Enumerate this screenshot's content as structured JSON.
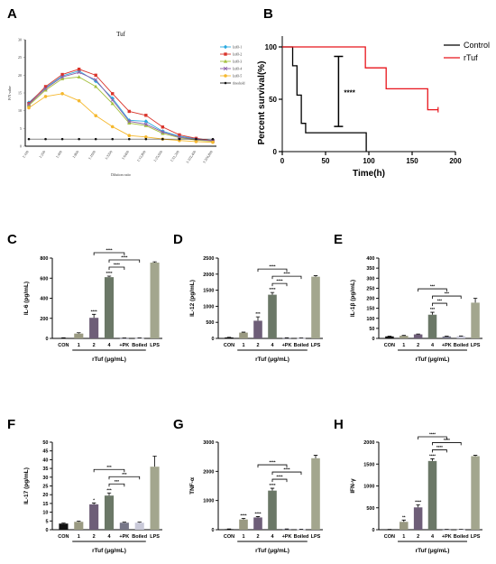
{
  "panel_labels": [
    "A",
    "B",
    "C",
    "D",
    "E",
    "F",
    "G",
    "H"
  ],
  "chart_data": [
    {
      "panel": "A",
      "type": "line",
      "title": "Tuf",
      "xlabel": "Dilution ratio",
      "ylabel": "P/N value",
      "categories": [
        "1:100",
        "1:200",
        "1:400",
        "1:800",
        "1:1600",
        "1:3200",
        "1:6400",
        "1:12,800",
        "1:25,600",
        "1:51,200",
        "1:102,400",
        "1:204,800"
      ],
      "ylim": [
        0,
        30
      ],
      "yticks": [
        0,
        5,
        10,
        15,
        20,
        25,
        30
      ],
      "legend_position": "right",
      "series": [
        {
          "name": "IzdO-1",
          "color": "#29a9e0",
          "marker": "diamond",
          "values": [
            12.3,
            16.5,
            19.8,
            21.2,
            18.3,
            13.5,
            7.3,
            7.0,
            4.2,
            2.8,
            2.1,
            1.6
          ]
        },
        {
          "name": "IzdO-2",
          "color": "#d9342b",
          "marker": "square",
          "values": [
            12.0,
            16.8,
            20.2,
            21.7,
            20.0,
            14.8,
            9.8,
            8.7,
            5.4,
            3.2,
            2.2,
            1.5
          ]
        },
        {
          "name": "IzdO-3",
          "color": "#a4c03d",
          "marker": "triangle",
          "values": [
            11.5,
            15.8,
            19.0,
            19.5,
            16.8,
            12.0,
            6.5,
            5.8,
            3.6,
            2.4,
            1.7,
            1.4
          ]
        },
        {
          "name": "IzdO-4",
          "color": "#8a5fa8",
          "marker": "x",
          "values": [
            11.8,
            16.2,
            19.5,
            20.8,
            18.7,
            13.0,
            7.0,
            6.2,
            4.0,
            2.6,
            1.9,
            1.5
          ]
        },
        {
          "name": "IzdO-5",
          "color": "#f5b82e",
          "marker": "circle",
          "values": [
            10.8,
            14.0,
            14.8,
            12.8,
            8.6,
            5.5,
            3.0,
            2.6,
            2.0,
            1.6,
            1.3,
            1.1
          ]
        },
        {
          "name": "threshold",
          "color": "#111111",
          "marker": "dot",
          "values": [
            2,
            2,
            2,
            2,
            2,
            2,
            2,
            2,
            2,
            2,
            2,
            2
          ]
        }
      ]
    },
    {
      "panel": "B",
      "type": "line",
      "xlabel": "Time(h)",
      "ylabel": "Percent survival(%)",
      "xlim": [
        0,
        200
      ],
      "ylim": [
        0,
        100
      ],
      "xticks": [
        0,
        50,
        100,
        150,
        200
      ],
      "yticks": [
        0,
        50,
        100
      ],
      "legend_position": "top-right",
      "significance": "****",
      "series": [
        {
          "name": "Control",
          "color": "#000000",
          "steps": [
            [
              0,
              100
            ],
            [
              12,
              100
            ],
            [
              12,
              82
            ],
            [
              17,
              82
            ],
            [
              17,
              54
            ],
            [
              22,
              54
            ],
            [
              22,
              27
            ],
            [
              27,
              27
            ],
            [
              27,
              18
            ],
            [
              97,
              18
            ],
            [
              97,
              0
            ]
          ]
        },
        {
          "name": "rTuf",
          "color": "#e8141b",
          "steps": [
            [
              0,
              100
            ],
            [
              96,
              100
            ],
            [
              96,
              80
            ],
            [
              120,
              80
            ],
            [
              120,
              60
            ],
            [
              168,
              60
            ],
            [
              168,
              40
            ],
            [
              180,
              40
            ]
          ],
          "censor": [
            [
              180,
              40
            ]
          ]
        }
      ]
    },
    {
      "panel": "C",
      "type": "bar",
      "ylabel": "IL-6 (pg/mL)",
      "xlabel": "rTuf (μg/mL)",
      "categories": [
        "CON",
        "1",
        "2",
        "4",
        "+PK",
        "Boiled",
        "LPS"
      ],
      "values": [
        5,
        48,
        205,
        610,
        3,
        3,
        755
      ],
      "errors": [
        2,
        8,
        35,
        10,
        1,
        1,
        8
      ],
      "ylim": [
        0,
        800
      ],
      "yticks": [
        0,
        200,
        400,
        600,
        800
      ],
      "bar_sig": [
        "",
        "",
        "****",
        "****",
        "",
        "",
        ""
      ],
      "brackets": [
        [
          "4",
          "+PK",
          "****"
        ],
        [
          "4",
          "Boiled",
          "****"
        ],
        [
          "2",
          "+PK",
          "****"
        ]
      ]
    },
    {
      "panel": "D",
      "type": "bar",
      "ylabel": "IL-12 (pg/mL)",
      "xlabel": "rTuf (μg/mL)",
      "categories": [
        "CON",
        "1",
        "2",
        "4",
        "+PK",
        "Boiled",
        "LPS"
      ],
      "values": [
        30,
        180,
        550,
        1360,
        15,
        10,
        1920
      ],
      "errors": [
        5,
        15,
        120,
        70,
        5,
        3,
        30
      ],
      "ylim": [
        0,
        2500
      ],
      "yticks": [
        0,
        500,
        1000,
        1500,
        2000,
        2500
      ],
      "bar_sig": [
        "",
        "",
        "***",
        "****",
        "",
        "",
        ""
      ],
      "brackets": [
        [
          "4",
          "+PK",
          "****"
        ],
        [
          "4",
          "Boiled",
          "****"
        ],
        [
          "2",
          "+PK",
          "****"
        ]
      ]
    },
    {
      "panel": "E",
      "type": "bar",
      "ylabel": "IL-1β (pg/mL)",
      "xlabel": "rTuf (μg/mL)",
      "categories": [
        "CON",
        "1",
        "2",
        "4",
        "+PK",
        "Boiled",
        "LPS"
      ],
      "values": [
        10,
        13,
        20,
        118,
        10,
        11,
        178
      ],
      "errors": [
        1,
        2,
        2,
        12,
        1,
        1,
        22
      ],
      "ylim": [
        0,
        400
      ],
      "yticks": [
        0,
        50,
        100,
        150,
        200,
        250,
        300,
        350,
        400
      ],
      "bar_sig": [
        "",
        "",
        "",
        "***",
        "",
        "",
        ""
      ],
      "brackets": [
        [
          "4",
          "+PK",
          "***"
        ],
        [
          "4",
          "Boiled",
          "***"
        ],
        [
          "2",
          "+PK",
          "***"
        ]
      ]
    },
    {
      "panel": "F",
      "type": "bar",
      "ylabel": "IL-17 (pg/mL)",
      "xlabel": "rTuf (μg/mL)",
      "categories": [
        "CON",
        "1",
        "2",
        "4",
        "+PK",
        "Boiled",
        "LPS"
      ],
      "values": [
        3.5,
        4.5,
        14.5,
        19.5,
        4,
        4,
        36
      ],
      "errors": [
        0.3,
        0.4,
        0.8,
        1.5,
        0.3,
        0.3,
        6
      ],
      "ylim": [
        0,
        50
      ],
      "yticks": [
        0,
        5,
        10,
        15,
        20,
        25,
        30,
        35,
        40,
        45,
        50
      ],
      "bar_sig": [
        "",
        "",
        "*",
        "***",
        "",
        "",
        ""
      ],
      "brackets": [
        [
          "4",
          "+PK",
          "***"
        ],
        [
          "4",
          "Boiled",
          "***"
        ],
        [
          "2",
          "+PK",
          "***"
        ]
      ]
    },
    {
      "panel": "G",
      "type": "bar",
      "ylabel": "TNF-α",
      "xlabel": "rTuf (μg/mL)",
      "categories": [
        "CON",
        "1",
        "2",
        "4",
        "+PK",
        "Boiled",
        "LPS"
      ],
      "values": [
        20,
        350,
        420,
        1340,
        20,
        15,
        2450
      ],
      "errors": [
        5,
        40,
        30,
        80,
        5,
        5,
        100
      ],
      "ylim": [
        0,
        3000
      ],
      "yticks": [
        0,
        1000,
        2000,
        3000
      ],
      "bar_sig": [
        "",
        "****",
        "****",
        "****",
        "",
        "",
        ""
      ],
      "brackets": [
        [
          "4",
          "+PK",
          "****"
        ],
        [
          "4",
          "Boiled",
          "****"
        ],
        [
          "2",
          "+PK",
          "****"
        ]
      ]
    },
    {
      "panel": "H",
      "type": "bar",
      "ylabel": "IFN-γ",
      "xlabel": "rTuf (μg/mL)",
      "categories": [
        "CON",
        "1",
        "2",
        "4",
        "+PK",
        "Boiled",
        "LPS"
      ],
      "values": [
        5,
        180,
        510,
        1570,
        5,
        5,
        1680
      ],
      "errors": [
        2,
        40,
        60,
        50,
        2,
        2,
        20
      ],
      "ylim": [
        0,
        2000
      ],
      "yticks": [
        0,
        500,
        1000,
        1500,
        2000
      ],
      "bar_sig": [
        "",
        "**",
        "****",
        "****",
        "",
        "",
        ""
      ],
      "brackets": [
        [
          "4",
          "+PK",
          "****"
        ],
        [
          "4",
          "Boiled",
          "****"
        ],
        [
          "2",
          "+PK",
          "****"
        ]
      ]
    }
  ],
  "bar_colors": [
    "#111111",
    "#9a9a82",
    "#6e5e78",
    "#6b7867",
    "#777788",
    "#c9c9d8",
    "#a3a68e"
  ]
}
